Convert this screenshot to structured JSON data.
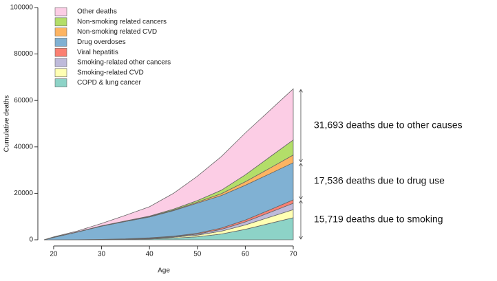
{
  "chart_data": {
    "type": "stacked-area",
    "x_label": "Age",
    "y_label": "Cumulative deaths",
    "x": [
      18,
      20,
      25,
      30,
      35,
      40,
      45,
      50,
      55,
      60,
      65,
      70
    ],
    "xlim": [
      18,
      70
    ],
    "ylim": [
      0,
      100000
    ],
    "xticks": [
      20,
      30,
      40,
      50,
      60,
      70
    ],
    "yticks": [
      0,
      20000,
      40000,
      60000,
      80000,
      100000
    ],
    "series": [
      {
        "name": "COPD & lung cancer",
        "color": "#8dd3c7",
        "values": [
          0,
          0,
          0,
          50,
          150,
          350,
          700,
          1300,
          2500,
          4500,
          7000,
          9500
        ]
      },
      {
        "name": "Smoking-related CVD",
        "color": "#ffffb3",
        "values": [
          0,
          0,
          20,
          60,
          120,
          250,
          400,
          700,
          1200,
          1900,
          2700,
          3500
        ]
      },
      {
        "name": "Smoking-related other cancers",
        "color": "#bebada",
        "values": [
          0,
          0,
          10,
          30,
          60,
          120,
          250,
          450,
          800,
          1300,
          2000,
          2700
        ]
      },
      {
        "name": "Viral hepatitis",
        "color": "#fb8072",
        "values": [
          0,
          0,
          10,
          30,
          60,
          100,
          200,
          350,
          550,
          800,
          1100,
          1500
        ]
      },
      {
        "name": "Drug overdoses",
        "color": "#80b1d3",
        "values": [
          0,
          1000,
          3300,
          5700,
          7500,
          9000,
          11000,
          13000,
          14000,
          15000,
          15500,
          16000
        ]
      },
      {
        "name": "Non-smoking related CVD",
        "color": "#fdb462",
        "values": [
          0,
          10,
          30,
          60,
          100,
          150,
          250,
          400,
          800,
          1500,
          2400,
          3300
        ]
      },
      {
        "name": "Non-smoking related cancers",
        "color": "#b3de69",
        "values": [
          0,
          20,
          60,
          100,
          150,
          250,
          400,
          700,
          1500,
          3000,
          4800,
          6500
        ]
      },
      {
        "name": "Other deaths",
        "color": "#fccde5",
        "values": [
          0,
          200,
          400,
          1000,
          2400,
          4000,
          6800,
          10500,
          14500,
          18000,
          20000,
          22000
        ]
      }
    ],
    "annotations": [
      "31,693 deaths due to other causes",
      "17,536 deaths due to drug use",
      "15,719 deaths due to smoking"
    ]
  }
}
